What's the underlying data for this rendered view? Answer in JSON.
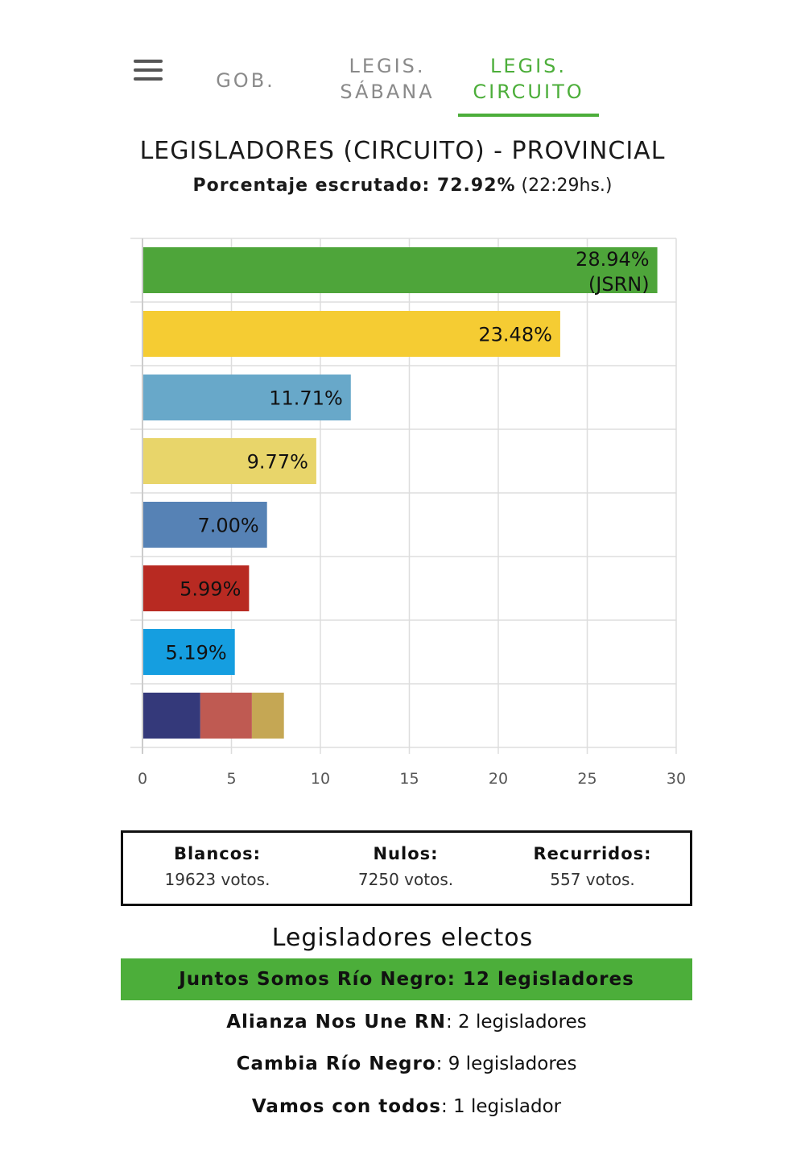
{
  "nav": {
    "tabs": [
      {
        "line1": "GOB.",
        "line2": ""
      },
      {
        "line1": "LEGIS.",
        "line2": "SÁBANA"
      },
      {
        "line1": "LEGIS.",
        "line2": "CIRCUITO"
      }
    ],
    "active_tab": 2,
    "accent_color": "#4cae3a"
  },
  "header": {
    "title": "LEGISLADORES (CIRCUITO) - PROVINCIAL",
    "scrutiny_label": "Porcentaje escrutado: 72.92%",
    "scrutiny_time": "(22:29hs.)"
  },
  "chart_data": {
    "type": "bar",
    "orientation": "horizontal",
    "xlim": [
      0,
      30
    ],
    "x_ticks": [
      "0",
      "5",
      "10",
      "15",
      "20",
      "25",
      "30"
    ],
    "grid": true,
    "bars": [
      {
        "value": 28.94,
        "label_line1": "28.94%",
        "label_line2": "(JSRN)",
        "color": "#4ea53a"
      },
      {
        "value": 23.48,
        "label_line1": "23.48%",
        "label_line2": "",
        "color": "#f5cc33"
      },
      {
        "value": 11.71,
        "label_line1": "11.71%",
        "label_line2": "",
        "color": "#68a8c9"
      },
      {
        "value": 9.77,
        "label_line1": "9.77%",
        "label_line2": "",
        "color": "#e8d56a"
      },
      {
        "value": 7.0,
        "label_line1": "7.00%",
        "label_line2": "",
        "color": "#5682b5"
      },
      {
        "value": 5.99,
        "label_line1": "5.99%",
        "label_line2": "",
        "color": "#b82a22"
      },
      {
        "value": 5.19,
        "label_line1": "5.19%",
        "label_line2": "",
        "color": "#159ee0"
      }
    ],
    "stacked_bar": [
      {
        "value": 3.25,
        "color": "#34397a"
      },
      {
        "value": 2.9,
        "color": "#bf5a52"
      },
      {
        "value": 1.8,
        "color": "#c5a754"
      }
    ]
  },
  "votes": {
    "blancos_label": "Blancos:",
    "blancos_value": "19623 votos.",
    "nulos_label": "Nulos:",
    "nulos_value": "7250 votos.",
    "recurridos_label": "Recurridos:",
    "recurridos_value": "557 votos."
  },
  "electos": {
    "title": "Legisladores electos",
    "rows": [
      {
        "party": "Juntos Somos Río Negro: 12 legisladores",
        "count": ""
      },
      {
        "party": "Alianza Nos Une RN",
        "count": ": 2 legisladores"
      },
      {
        "party": "Cambia Río Negro",
        "count": ": 9 legisladores"
      },
      {
        "party": "Vamos con todos",
        "count": ": 1 legislador"
      }
    ]
  }
}
